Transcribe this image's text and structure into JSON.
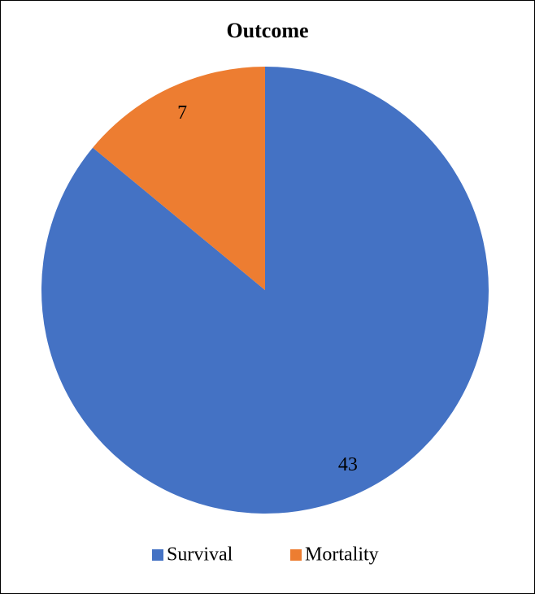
{
  "chart_data": {
    "type": "pie",
    "title": "Outcome",
    "categories": [
      "Survival",
      "Mortality"
    ],
    "values": [
      43,
      7
    ],
    "colors": [
      "#4472c4",
      "#ed7d31"
    ],
    "legend": "bottom"
  }
}
